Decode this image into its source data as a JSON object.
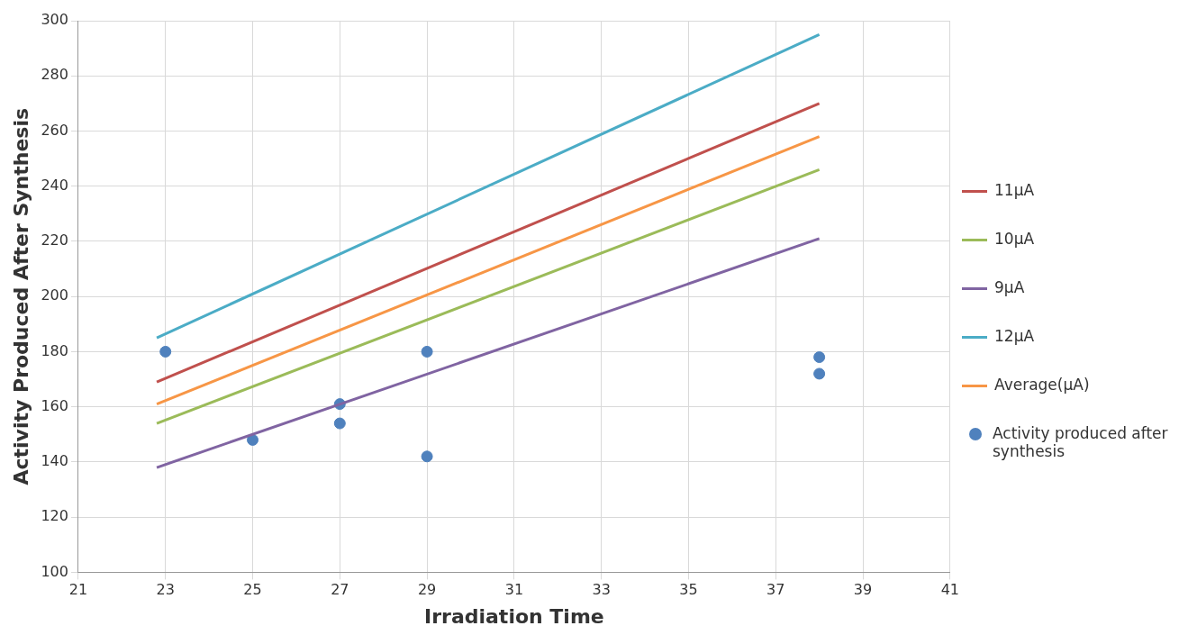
{
  "chart_data": {
    "type": "line",
    "xlabel": "Irradiation Time",
    "ylabel": "Activity Produced After Synthesis",
    "xlim": [
      21,
      41
    ],
    "xticks": [
      21,
      23,
      25,
      27,
      29,
      31,
      33,
      35,
      37,
      39,
      41
    ],
    "ylim": [
      100,
      300
    ],
    "yticks": [
      100,
      120,
      140,
      160,
      180,
      200,
      220,
      240,
      260,
      280,
      300
    ],
    "grid": true,
    "legend": "right",
    "marker": "none",
    "line_style": "solid",
    "series": [
      {
        "name": "11µA",
        "color": "#c0504d",
        "x": [
          22.8,
          38
        ],
        "values": [
          169,
          270
        ]
      },
      {
        "name": "10µA",
        "color": "#9bbb59",
        "x": [
          22.8,
          38
        ],
        "values": [
          154,
          246
        ]
      },
      {
        "name": "9µA",
        "color": "#8064a2",
        "x": [
          22.8,
          38
        ],
        "values": [
          138,
          221
        ]
      },
      {
        "name": "12µA",
        "color": "#4bacc6",
        "x": [
          22.8,
          38
        ],
        "values": [
          185,
          295
        ]
      },
      {
        "name": "Average(µA)",
        "color": "#f79646",
        "x": [
          22.8,
          38
        ],
        "values": [
          161,
          258
        ]
      },
      {
        "name": "Activity produced after synthesis",
        "type": "scatter",
        "marker": "circle",
        "color": "#4f81bd",
        "x": [
          23,
          25,
          27,
          27,
          29,
          29,
          38,
          38
        ],
        "values": [
          180,
          148,
          161,
          154,
          180,
          142,
          178,
          172
        ]
      }
    ]
  }
}
